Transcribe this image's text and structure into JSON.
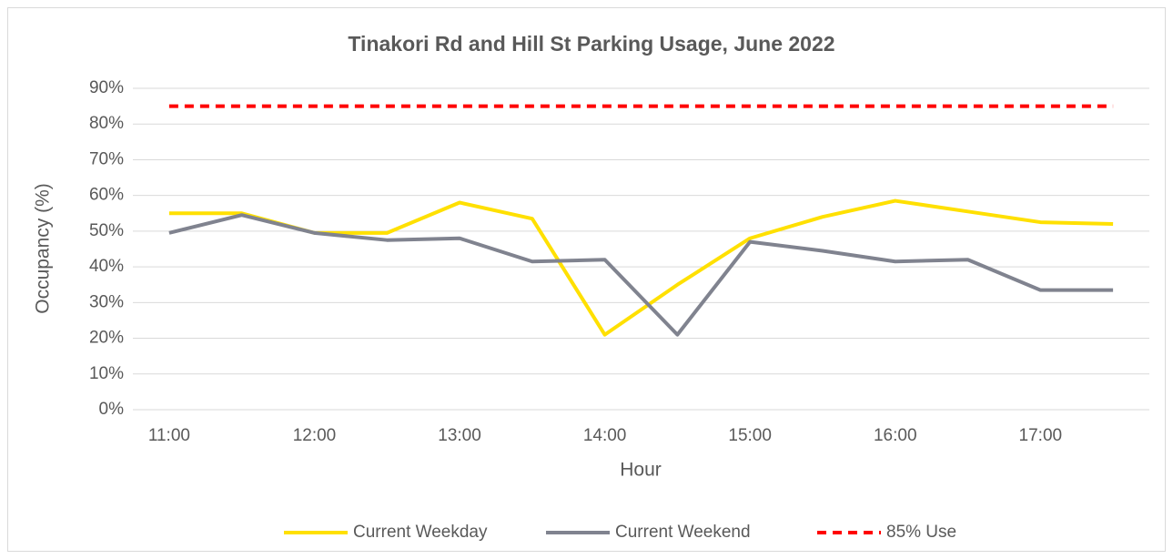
{
  "chart_data": {
    "type": "line",
    "title": "Tinakori Rd and Hill St Parking Usage, June 2022",
    "x_label": "Hour",
    "y_label": "Occupancy (%)",
    "categories": [
      "11:00",
      null,
      "12:00",
      null,
      "13:00",
      null,
      "14:00",
      null,
      "15:00",
      null,
      "16:00",
      null,
      "17:00",
      null
    ],
    "series": [
      {
        "name": "Current Weekday",
        "color": "#FFE000",
        "dashed": false,
        "values": [
          55,
          55,
          49.5,
          49.5,
          58,
          53.5,
          21,
          35,
          48,
          54,
          58.5,
          55.5,
          52.5,
          52
        ]
      },
      {
        "name": "Current Weekend",
        "color": "#80838F",
        "dashed": false,
        "values": [
          49.5,
          54.5,
          49.5,
          47.5,
          48,
          41.5,
          42,
          21,
          47,
          44.5,
          41.5,
          42,
          33.5,
          33.5
        ]
      },
      {
        "name": "85% Use",
        "color": "#FF0000",
        "dashed": true,
        "values": [
          85,
          85,
          85,
          85,
          85,
          85,
          85,
          85,
          85,
          85,
          85,
          85,
          85,
          85
        ]
      }
    ],
    "ylim": [
      0,
      90
    ],
    "yticks": [
      {
        "value": 0,
        "label": "0%"
      },
      {
        "value": 10,
        "label": "10%"
      },
      {
        "value": 20,
        "label": "20%"
      },
      {
        "value": 30,
        "label": "30%"
      },
      {
        "value": 40,
        "label": "40%"
      },
      {
        "value": 50,
        "label": "50%"
      },
      {
        "value": 60,
        "label": "60%"
      },
      {
        "value": 70,
        "label": "70%"
      },
      {
        "value": 80,
        "label": "80%"
      },
      {
        "value": 90,
        "label": "90%"
      }
    ],
    "grid": true,
    "legend": "bottom"
  }
}
